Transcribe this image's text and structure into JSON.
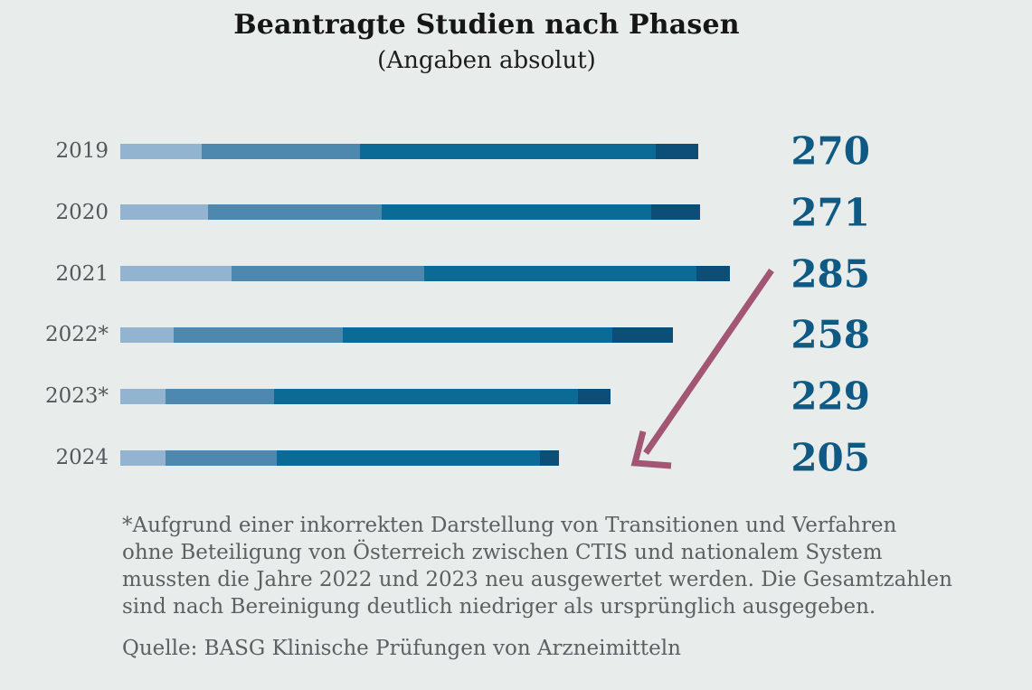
{
  "title": "Beantragte Studien nach Phasen",
  "subtitle": "(Angaben absolut)",
  "chart_data": {
    "type": "bar",
    "orientation": "horizontal",
    "stacked": true,
    "title": "Beantragte Studien nach Phasen",
    "subtitle": "(Angaben absolut)",
    "categories": [
      "2019",
      "2020",
      "2021",
      "2022*",
      "2023*",
      "2024"
    ],
    "series": [
      {
        "name": "phase-segment-1",
        "color": "#92b4d0",
        "values": [
          38,
          41,
          52,
          25,
          21,
          21
        ]
      },
      {
        "name": "phase-segment-2",
        "color": "#4e88ae",
        "values": [
          74,
          81,
          90,
          79,
          51,
          52
        ]
      },
      {
        "name": "phase-segment-3",
        "color": "#0c6a96",
        "values": [
          138,
          126,
          127,
          126,
          142,
          123
        ]
      },
      {
        "name": "phase-segment-4",
        "color": "#0d4e79",
        "values": [
          20,
          23,
          16,
          28,
          15,
          9
        ]
      }
    ],
    "totals": [
      270,
      271,
      285,
      258,
      229,
      205
    ],
    "legend": "none",
    "axes": "none"
  },
  "arrow": {
    "color": "#a25673",
    "direction": "down-left",
    "meaning": "decline from 285 in 2021 toward 205 in 2024"
  },
  "footnote_lines": [
    "*Aufgrund einer inkorrekten Darstellung von Transitionen und Verfahren",
    "ohne Beteiligung von Österreich zwischen CTIS und nationalem System",
    "mussten die Jahre 2022 und 2023 neu ausgewertet werden. Die Gesamtzahlen",
    "sind nach Bereinigung deutlich niedriger als ursprünglich ausgegeben."
  ],
  "source": "Quelle: BASG Klinische Prüfungen von Arzneimitteln",
  "colors": {
    "background": "#e8edec",
    "title": "#161616",
    "year_label": "#54585a",
    "total_value": "#0f5a85",
    "footnote": "#5b6062",
    "arrow": "#a25673"
  }
}
